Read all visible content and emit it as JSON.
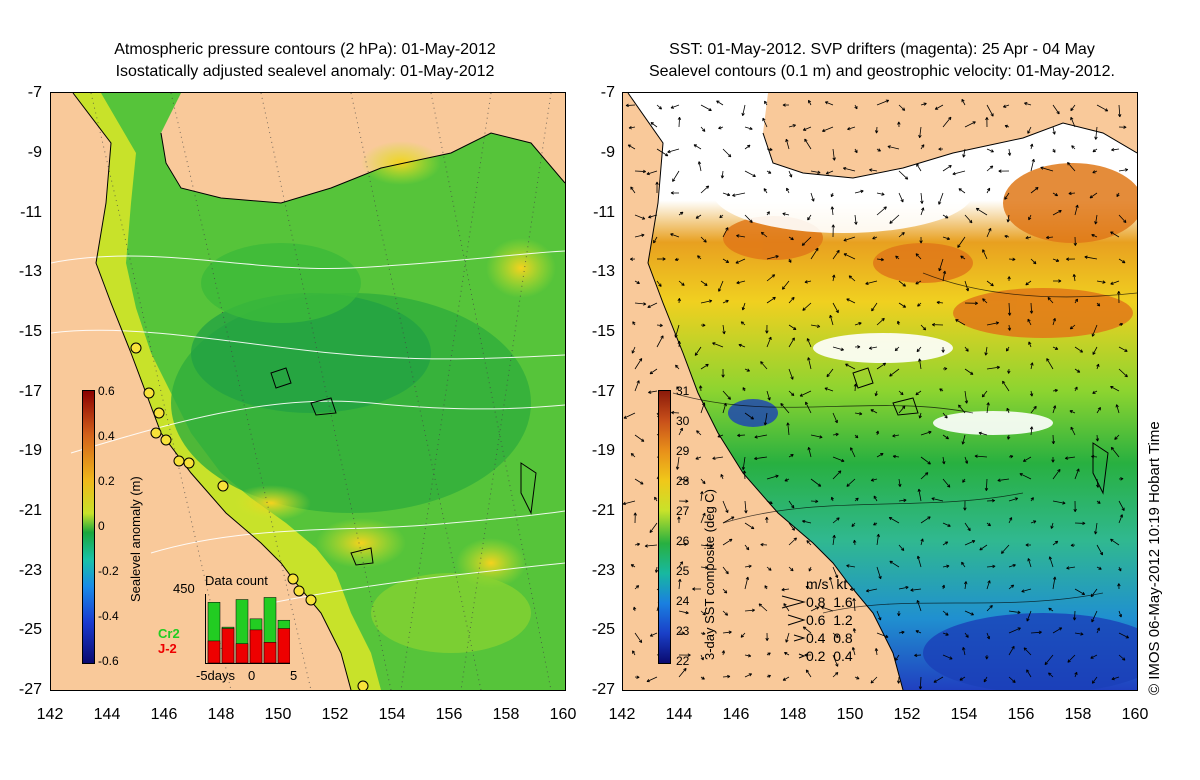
{
  "left_panel": {
    "title_line1": "Atmospheric pressure contours (2 hPa): 01-May-2012",
    "title_line2": "Isostatically adjusted sealevel anomaly: 01-May-2012",
    "colorbar_label": "Sealevel anomaly (m)",
    "colorbar_ticks": [
      "0.6",
      "0.4",
      "0.2",
      "0",
      "-0.2",
      "-0.4",
      "-0.6"
    ],
    "histogram": {
      "title": "Data count",
      "max_label": "450",
      "series1": "Cr2",
      "series2": "J-2",
      "series1_color": "#22cc22",
      "series2_color": "#ee0000",
      "x_left": "-5days",
      "x_mid": "0",
      "x_right": "5",
      "cr2_values": [
        0.88,
        0.52,
        0.92,
        0.64,
        0.95,
        0.62
      ],
      "j2_values": [
        0.32,
        0.5,
        0.28,
        0.48,
        0.3,
        0.5
      ]
    }
  },
  "right_panel": {
    "title_line1": "SST: 01-May-2012. SVP drifters (magenta): 25 Apr - 04 May",
    "title_line2": "Sealevel contours (0.1 m) and geostrophic velocity: 01-May-2012.",
    "colorbar_label": "3-day SST composite (deg C)",
    "colorbar_ticks": [
      "31",
      "30",
      "29",
      "28",
      "27",
      "26",
      "25",
      "24",
      "23",
      "22"
    ],
    "speed_legend_header": "m/s  kt",
    "speed_legend": [
      "0.8  1.6",
      "0.6  1.2",
      "0.4  0.8",
      "0.2  0.4"
    ]
  },
  "y_ticks": [
    "-7",
    "-9",
    "-11",
    "-13",
    "-15",
    "-17",
    "-19",
    "-21",
    "-23",
    "-25",
    "-27"
  ],
  "x_ticks": [
    "142",
    "144",
    "146",
    "148",
    "150",
    "152",
    "154",
    "156",
    "158",
    "160"
  ],
  "copyright": "© IMOS 06-May-2012 10:19 Hobart Time",
  "colors": {
    "land": "#f9c99a",
    "contour": "#ffffff",
    "coast": "#000000"
  }
}
